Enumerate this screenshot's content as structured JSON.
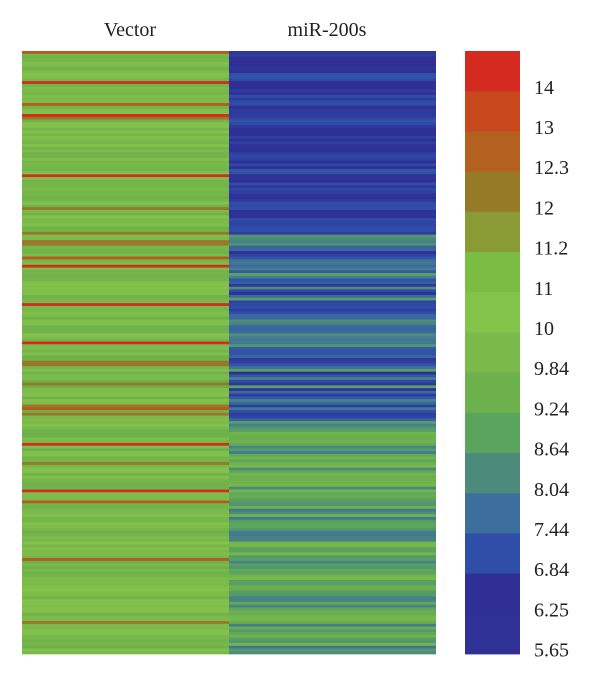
{
  "chart_data": {
    "type": "heatmap",
    "columns": [
      "Vector",
      "miR-200s"
    ],
    "color_scale": {
      "tick_labels": [
        "14",
        "13",
        "12.3",
        "12",
        "11.2",
        "11",
        "10",
        "9.84",
        "9.24",
        "8.64",
        "8.04",
        "7.44",
        "6.84",
        "6.25",
        "5.65"
      ],
      "colors": [
        "#d42a1f",
        "#c8481d",
        "#b36020",
        "#977a27",
        "#8a9a35",
        "#7bbc43",
        "#84c34a",
        "#7ab94a",
        "#6db14c",
        "#5aa45e",
        "#4c8a7c",
        "#3d6f9d",
        "#2f4ea8",
        "#2f2f96",
        "#2f3196"
      ],
      "range": [
        5.65,
        14
      ],
      "position": "right"
    },
    "rows": 220,
    "vector_base_range": [
      9.2,
      10.4
    ],
    "vector_high_values": [
      12.3,
      13.0,
      14.0
    ],
    "mir200s_profile": [
      {
        "from": 0,
        "to": 0.29,
        "range": [
          5.65,
          7.0
        ]
      },
      {
        "from": 0.29,
        "to": 0.62,
        "range": [
          6.2,
          8.8
        ]
      },
      {
        "from": 0.62,
        "to": 1.0,
        "range": [
          7.4,
          9.84
        ]
      }
    ]
  }
}
